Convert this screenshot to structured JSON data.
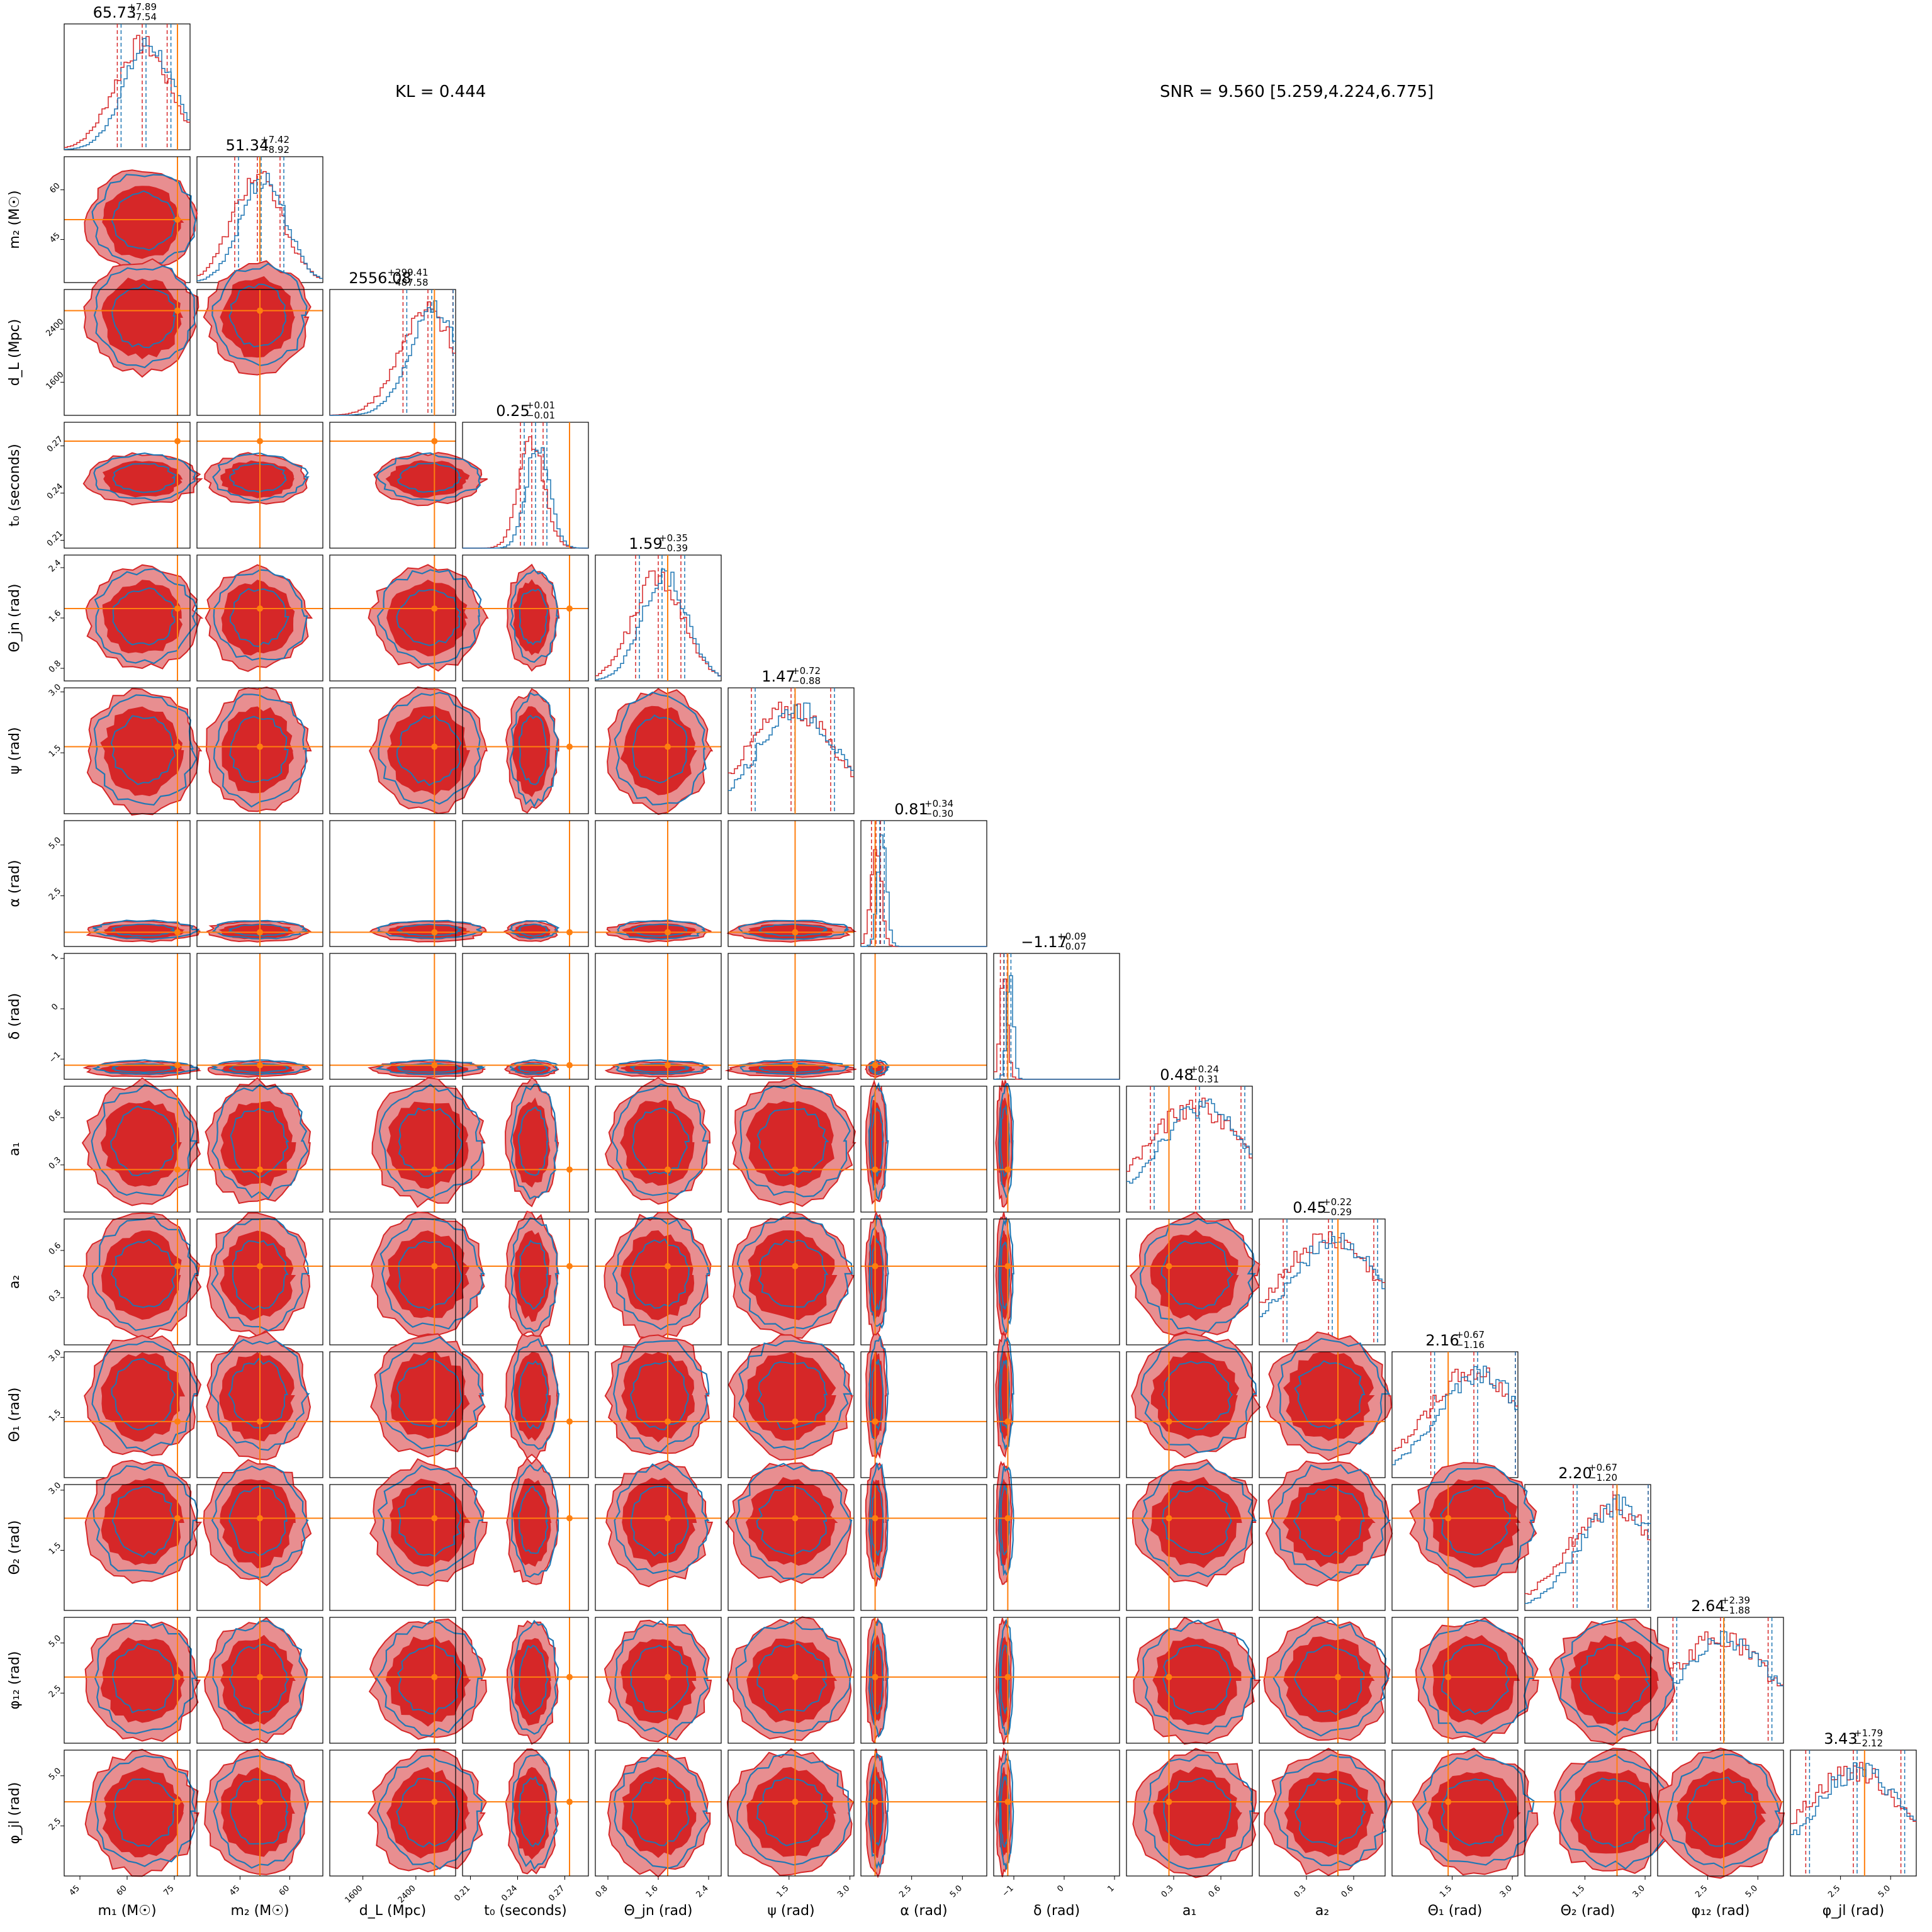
{
  "annotations": {
    "kl": "KL = 0.444",
    "snr": "SNR = 9.560 [5.259,4.224,6.775]"
  },
  "colors": {
    "series_a": "#d62728",
    "series_a_light": "#e88e90",
    "series_b": "#1f77b4",
    "truth": "#ff7f0e"
  },
  "chart_data": {
    "type": "corner",
    "series": [
      {
        "name": "",
        "color": "#d62728"
      },
      {
        "name": "",
        "color": "#1f77b4"
      }
    ],
    "parameters": [
      {
        "key": "m1",
        "label": "m₁ (M☉)",
        "median": "65.73",
        "plus": "+7.89",
        "minus": "−7.54",
        "ticks": [
          "45",
          "60",
          "75"
        ],
        "range": [
          40,
          80
        ],
        "truth": 76
      },
      {
        "key": "m2",
        "label": "m₂ (M☉)",
        "median": "51.34",
        "plus": "+7.42",
        "minus": "−8.92",
        "ticks": [
          "45",
          "60"
        ],
        "range": [
          32,
          70
        ],
        "truth": 51
      },
      {
        "key": "dL",
        "label": "d_L (Mpc)",
        "median": "2556.08",
        "plus": "+299.41",
        "minus": "−487.58",
        "ticks": [
          "1600",
          "2400"
        ],
        "range": [
          1100,
          3000
        ],
        "truth": 2680
      },
      {
        "key": "t0",
        "label": "t₀ (seconds)",
        "median": "0.25",
        "plus": "+0.01",
        "minus": "−0.01",
        "ticks": [
          "0.21",
          "0.24",
          "0.27"
        ],
        "range": [
          0.205,
          0.285
        ],
        "truth": 0.273
      },
      {
        "key": "theta_jn",
        "label": "Θ_jn (rad)",
        "median": "1.59",
        "plus": "+0.35",
        "minus": "−0.39",
        "ticks": [
          "0.8",
          "1.6",
          "2.4"
        ],
        "range": [
          0.6,
          2.6
        ],
        "truth": 1.75
      },
      {
        "key": "psi",
        "label": "ψ (rad)",
        "median": "1.47",
        "plus": "+0.72",
        "minus": "−0.88",
        "ticks": [
          "1.5",
          "3.0"
        ],
        "range": [
          0.0,
          3.1
        ],
        "truth": 1.65
      },
      {
        "key": "alpha",
        "label": "α (rad)",
        "median": "0.81",
        "plus": "+0.34",
        "minus": "−0.30",
        "ticks": [
          "2.5",
          "5.0"
        ],
        "range": [
          0.0,
          6.2
        ],
        "truth": 0.7
      },
      {
        "key": "delta",
        "label": "δ (rad)",
        "median": "−1.17",
        "plus": "+0.09",
        "minus": "−0.07",
        "ticks": [
          "−1",
          "0",
          "1"
        ],
        "range": [
          -1.4,
          1.1
        ],
        "truth": -1.12
      },
      {
        "key": "a1",
        "label": "a₁",
        "median": "0.48",
        "plus": "+0.24",
        "minus": "−0.31",
        "ticks": [
          "0.3",
          "0.6"
        ],
        "range": [
          0.0,
          0.8
        ],
        "truth": 0.27
      },
      {
        "key": "a2",
        "label": "a₂",
        "median": "0.45",
        "plus": "+0.22",
        "minus": "−0.29",
        "ticks": [
          "0.3",
          "0.6"
        ],
        "range": [
          0.0,
          0.8
        ],
        "truth": 0.5
      },
      {
        "key": "theta1",
        "label": "Θ₁ (rad)",
        "median": "2.16",
        "plus": "+0.67",
        "minus": "−1.16",
        "ticks": [
          "1.5",
          "3.0"
        ],
        "range": [
          0.0,
          3.14
        ],
        "truth": 1.4
      },
      {
        "key": "theta2",
        "label": "Θ₂ (rad)",
        "median": "2.20",
        "plus": "+0.67",
        "minus": "−1.20",
        "ticks": [
          "1.5",
          "3.0"
        ],
        "range": [
          0.0,
          3.14
        ],
        "truth": 2.3
      },
      {
        "key": "phi12",
        "label": "φ₁₂ (rad)",
        "median": "2.64",
        "plus": "+2.39",
        "minus": "−1.88",
        "ticks": [
          "2.5",
          "5.0"
        ],
        "range": [
          0.0,
          6.28
        ],
        "truth": 3.3
      },
      {
        "key": "phi_jl",
        "label": "φ_jl (rad)",
        "median": "3.43",
        "plus": "+1.79",
        "minus": "−2.12",
        "ticks": [
          "2.5",
          "5.0"
        ],
        "range": [
          0.0,
          6.28
        ],
        "truth": 3.7
      }
    ]
  }
}
